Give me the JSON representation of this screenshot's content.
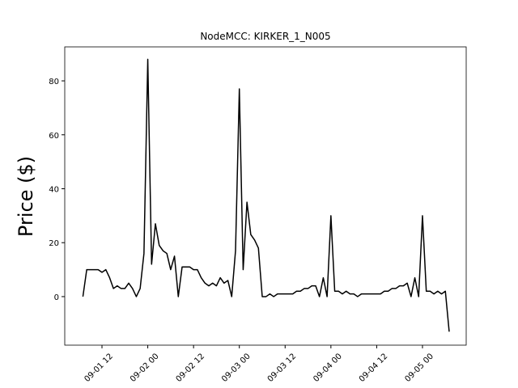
{
  "chart_data": {
    "type": "line",
    "title": "NodeMCC: KIRKER_1_N005",
    "y_label": "Price ($)",
    "x": [
      7,
      8,
      9,
      10,
      11,
      12,
      13,
      14,
      15,
      16,
      17,
      18,
      19,
      20,
      21,
      22,
      23,
      24,
      25,
      26,
      27,
      28,
      29,
      30,
      31,
      32,
      33,
      34,
      35,
      36,
      37,
      38,
      39,
      40,
      41,
      42,
      43,
      44,
      45,
      46,
      47,
      48,
      49,
      50,
      51,
      52,
      53,
      54,
      55,
      56,
      57,
      58,
      59,
      60,
      61,
      62,
      63,
      64,
      65,
      66,
      67,
      68,
      69,
      70,
      71,
      72,
      73,
      74,
      75,
      76,
      77,
      78,
      79,
      80,
      81,
      82,
      83,
      84,
      85,
      86,
      87,
      88,
      89,
      90,
      91,
      92,
      93,
      94,
      95,
      96,
      97,
      98,
      99,
      100,
      101,
      102,
      103
    ],
    "series": [
      {
        "color": "#000000",
        "values": [
          0,
          10,
          10,
          10,
          10,
          9,
          10,
          7,
          3,
          4,
          3,
          3,
          5,
          3,
          0,
          3,
          16,
          88,
          12,
          27,
          19,
          17,
          16,
          10,
          15,
          0,
          11,
          11,
          11,
          10,
          10,
          7,
          5,
          4,
          5,
          4,
          7,
          5,
          6,
          0,
          17,
          77,
          10,
          35,
          23,
          21,
          18,
          0,
          0,
          1,
          0,
          1,
          1,
          1,
          1,
          1,
          2,
          2,
          3,
          3,
          4,
          4,
          0,
          7,
          0,
          30,
          2,
          2,
          1,
          2,
          1,
          1,
          0,
          1,
          1,
          1,
          1,
          1,
          1,
          2,
          2,
          3,
          3,
          4,
          4,
          5,
          0,
          7,
          0,
          30,
          2,
          2,
          1,
          2,
          1,
          2,
          -13
        ]
      }
    ],
    "xlim": [
      2.24,
      107.46
    ],
    "xticks": [
      {
        "value": 12,
        "label": "09-01 12"
      },
      {
        "value": 24,
        "label": "09-02 00"
      },
      {
        "value": 36,
        "label": "09-02 12"
      },
      {
        "value": 48,
        "label": "09-03 00"
      },
      {
        "value": 60,
        "label": "09-03 12"
      },
      {
        "value": 72,
        "label": "09-04 00"
      },
      {
        "value": 84,
        "label": "09-04 12"
      },
      {
        "value": 96,
        "label": "09-05 00"
      }
    ],
    "ylim": [
      -18,
      92.6
    ],
    "yticks": [
      0,
      20,
      40,
      60,
      80
    ],
    "grid": false
  }
}
